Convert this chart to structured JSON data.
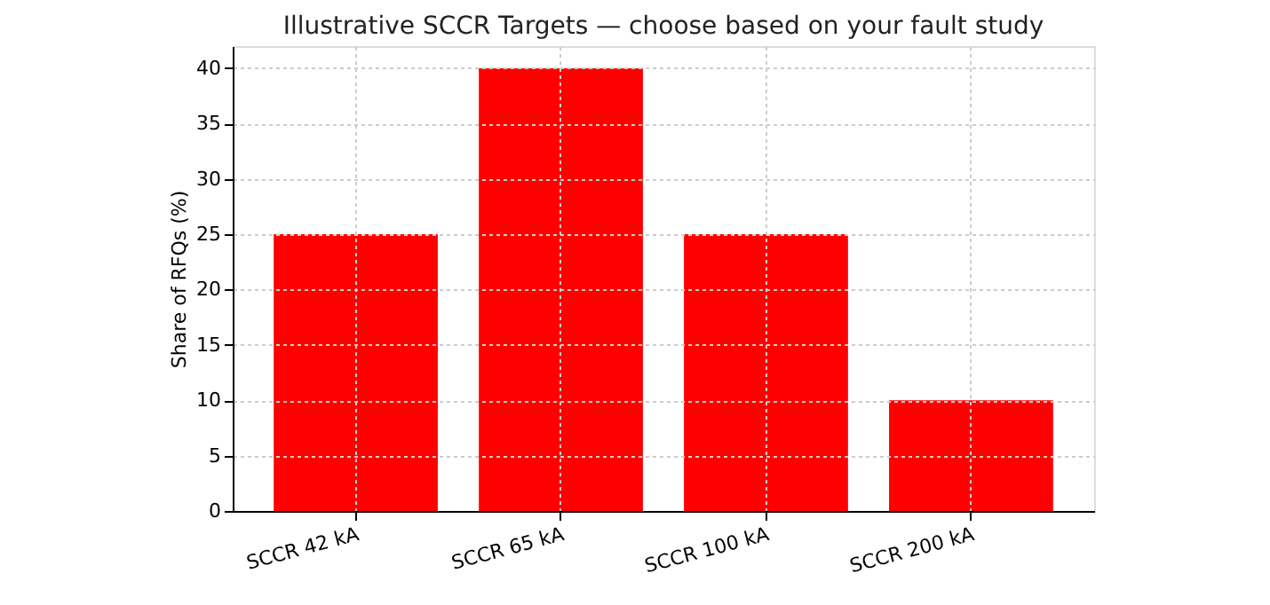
{
  "chart_data": {
    "type": "bar",
    "title": "Illustrative SCCR Targets — choose based on your fault study",
    "categories": [
      "SCCR 42 kA",
      "SCCR 65 kA",
      "SCCR 100 kA",
      "SCCR 200 kA"
    ],
    "values": [
      25,
      40,
      25,
      10
    ],
    "color": "#ff0000",
    "ylabel": "Share of RFQs (%)",
    "ylim": [
      0,
      42
    ],
    "yticks": [
      0,
      5,
      10,
      15,
      20,
      25,
      30,
      35,
      40
    ],
    "grid": true
  }
}
